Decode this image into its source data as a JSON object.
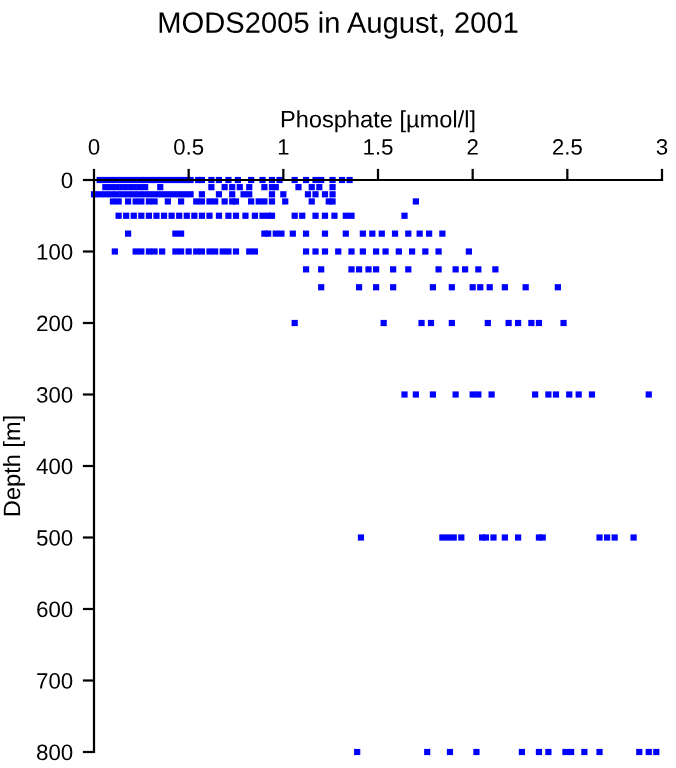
{
  "chart_data": {
    "type": "scatter",
    "title": "MODS2005 in August, 2001",
    "xlabel": "Phosphate [µmol/l]",
    "ylabel": "Depth [m]",
    "xlim": [
      0,
      3
    ],
    "xticks": [
      0,
      0.5,
      1,
      1.5,
      2,
      2.5,
      3
    ],
    "ylim": [
      800,
      0
    ],
    "yticks": [
      0,
      100,
      200,
      300,
      400,
      500,
      600,
      700,
      800
    ],
    "grid": false,
    "legend": false,
    "marker": "square",
    "series": [
      {
        "color": "#0000ff",
        "x": [
          0.03,
          0.06,
          0.09,
          0.12,
          0.15,
          0.18,
          0.21,
          0.24,
          0.27,
          0.3,
          0.33,
          0.36,
          0.39,
          0.42,
          0.45,
          0.48,
          0.51,
          0.55,
          0.57,
          0.62,
          0.66,
          0.71,
          0.76,
          0.83,
          0.89,
          0.94,
          0.98,
          1.06,
          1.12,
          1.17,
          1.2,
          1.26,
          1.31,
          1.35
        ],
        "values": [
          0,
          0,
          0,
          0,
          0,
          0,
          0,
          0,
          0,
          0,
          0,
          0,
          0,
          0,
          0,
          0,
          0,
          0,
          0,
          0,
          0,
          0,
          0,
          0,
          0,
          0,
          0,
          0,
          0,
          0,
          0,
          0,
          0,
          0
        ]
      },
      {
        "color": "#0000ff",
        "x": [
          0.06,
          0.09,
          0.12,
          0.15,
          0.18,
          0.21,
          0.24,
          0.27,
          0.35,
          0.62,
          0.69,
          0.73,
          0.77,
          0.82,
          0.9,
          0.94,
          0.96,
          1.08,
          1.15,
          1.19,
          1.26
        ],
        "values": [
          10,
          10,
          10,
          10,
          10,
          10,
          10,
          10,
          10,
          10,
          10,
          10,
          10,
          10,
          10,
          10,
          10,
          10,
          10,
          10,
          10
        ]
      },
      {
        "color": "#0000ff",
        "x": [
          0.0,
          0.03,
          0.06,
          0.09,
          0.12,
          0.15,
          0.18,
          0.21,
          0.24,
          0.27,
          0.3,
          0.33,
          0.36,
          0.39,
          0.42,
          0.45,
          0.48,
          0.51,
          0.57,
          0.66,
          0.73,
          0.79,
          0.82,
          0.94,
          1.0,
          1.13,
          1.17,
          1.22,
          1.26
        ],
        "values": [
          20,
          20,
          20,
          20,
          20,
          20,
          20,
          20,
          20,
          20,
          20,
          20,
          20,
          20,
          20,
          20,
          20,
          20,
          20,
          20,
          20,
          20,
          20,
          20,
          20,
          20,
          20,
          20,
          20
        ]
      },
      {
        "color": "#0000ff",
        "x": [
          0.1,
          0.13,
          0.18,
          0.22,
          0.25,
          0.29,
          0.32,
          0.39,
          0.46,
          0.54,
          0.57,
          0.61,
          0.64,
          0.69,
          0.73,
          0.75,
          0.83,
          0.87,
          0.9,
          0.94,
          1.01,
          1.15,
          1.24,
          1.26,
          1.7
        ],
        "values": [
          30,
          30,
          30,
          30,
          30,
          30,
          30,
          30,
          30,
          30,
          30,
          30,
          30,
          30,
          30,
          30,
          30,
          30,
          30,
          30,
          30,
          30,
          30,
          30,
          30
        ]
      },
      {
        "color": "#0000ff",
        "x": [
          0.13,
          0.17,
          0.21,
          0.25,
          0.29,
          0.33,
          0.37,
          0.41,
          0.45,
          0.49,
          0.53,
          0.57,
          0.61,
          0.66,
          0.71,
          0.75,
          0.8,
          0.85,
          0.89,
          0.92,
          0.94,
          1.06,
          1.1,
          1.17,
          1.22,
          1.27,
          1.33,
          1.36,
          1.64
        ],
        "values": [
          50,
          50,
          50,
          50,
          50,
          50,
          50,
          50,
          50,
          50,
          50,
          50,
          50,
          50,
          50,
          50,
          50,
          50,
          50,
          50,
          50,
          50,
          50,
          50,
          50,
          50,
          50,
          50,
          50
        ]
      },
      {
        "color": "#0000ff",
        "x": [
          0.18,
          0.43,
          0.46,
          0.9,
          0.92,
          0.96,
          0.99,
          1.05,
          1.12,
          1.22,
          1.33,
          1.42,
          1.47,
          1.52,
          1.59,
          1.66,
          1.72,
          1.77,
          1.84
        ],
        "values": [
          75,
          75,
          75,
          75,
          75,
          75,
          75,
          75,
          75,
          75,
          75,
          75,
          75,
          75,
          75,
          75,
          75,
          75,
          75
        ]
      },
      {
        "color": "#0000ff",
        "x": [
          0.11,
          0.22,
          0.25,
          0.29,
          0.32,
          0.36,
          0.43,
          0.46,
          0.5,
          0.54,
          0.57,
          0.61,
          0.64,
          0.68,
          0.71,
          0.75,
          0.82,
          0.85,
          1.12,
          1.17,
          1.22,
          1.29,
          1.36,
          1.42,
          1.49,
          1.54,
          1.61,
          1.68,
          1.75,
          1.82,
          1.98
        ],
        "values": [
          100,
          100,
          100,
          100,
          100,
          100,
          100,
          100,
          100,
          100,
          100,
          100,
          100,
          100,
          100,
          100,
          100,
          100,
          100,
          100,
          100,
          100,
          100,
          100,
          100,
          100,
          100,
          100,
          100,
          100,
          100
        ]
      },
      {
        "color": "#0000ff",
        "x": [
          1.12,
          1.2,
          1.36,
          1.4,
          1.45,
          1.49,
          1.58,
          1.66,
          1.82,
          1.91,
          1.96,
          2.03,
          2.12
        ],
        "values": [
          125,
          125,
          125,
          125,
          125,
          125,
          125,
          125,
          125,
          125,
          125,
          125,
          125
        ]
      },
      {
        "color": "#0000ff",
        "x": [
          1.2,
          1.4,
          1.49,
          1.58,
          1.79,
          1.89,
          2.0,
          2.04,
          2.09,
          2.17,
          2.28,
          2.45
        ],
        "values": [
          150,
          150,
          150,
          150,
          150,
          150,
          150,
          150,
          150,
          150,
          150,
          150
        ]
      },
      {
        "color": "#0000ff",
        "x": [
          1.06,
          1.53,
          1.73,
          1.78,
          1.89,
          2.08,
          2.19,
          2.24,
          2.31,
          2.35,
          2.48
        ],
        "values": [
          200,
          200,
          200,
          200,
          200,
          200,
          200,
          200,
          200,
          200,
          200
        ]
      },
      {
        "color": "#0000ff",
        "x": [
          1.64,
          1.7,
          1.79,
          1.91,
          2.0,
          2.03,
          2.1,
          2.33,
          2.4,
          2.44,
          2.51,
          2.56,
          2.63,
          2.93
        ],
        "values": [
          300,
          300,
          300,
          300,
          300,
          300,
          300,
          300,
          300,
          300,
          300,
          300,
          300,
          300
        ]
      },
      {
        "color": "#0000ff",
        "x": [
          1.41,
          1.84,
          1.87,
          1.9,
          1.94,
          2.05,
          2.07,
          2.11,
          2.17,
          2.24,
          2.35,
          2.37,
          2.67,
          2.71,
          2.75,
          2.85
        ],
        "values": [
          500,
          500,
          500,
          500,
          500,
          500,
          500,
          500,
          500,
          500,
          500,
          500,
          500,
          500,
          500,
          500
        ]
      },
      {
        "color": "#0000ff",
        "x": [
          1.39,
          1.76,
          1.88,
          2.02,
          2.26,
          2.35,
          2.4,
          2.49,
          2.52,
          2.59,
          2.67,
          2.88,
          2.93,
          2.97
        ],
        "values": [
          800,
          800,
          800,
          800,
          800,
          800,
          800,
          800,
          800,
          800,
          800,
          800,
          800,
          800
        ]
      }
    ]
  }
}
